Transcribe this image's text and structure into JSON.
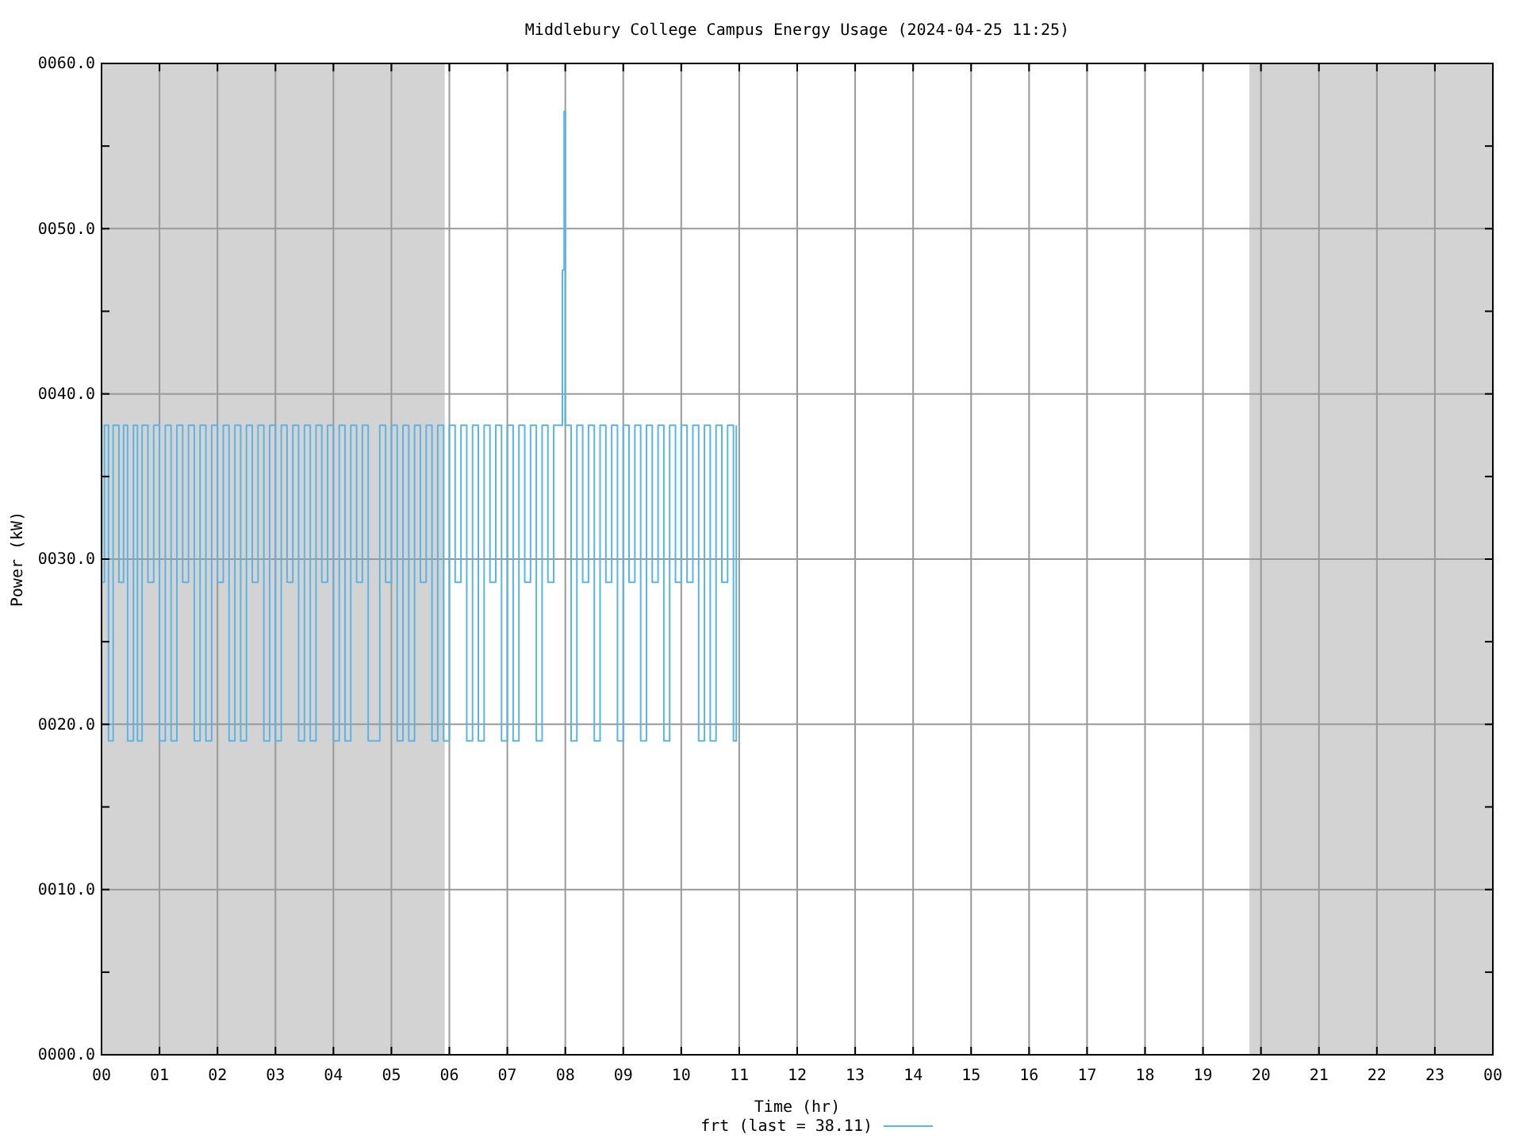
{
  "chart_data": {
    "type": "step",
    "title": "Middlebury College Campus Energy Usage (2024-04-25 11:25)",
    "xlabel": "Time (hr)",
    "ylabel": "Power (kW)",
    "xlim": [
      0,
      24
    ],
    "ylim": [
      0,
      60
    ],
    "xticks": [
      {
        "value": 0,
        "label": "00"
      },
      {
        "value": 1,
        "label": "01"
      },
      {
        "value": 2,
        "label": "02"
      },
      {
        "value": 3,
        "label": "03"
      },
      {
        "value": 4,
        "label": "04"
      },
      {
        "value": 5,
        "label": "05"
      },
      {
        "value": 6,
        "label": "06"
      },
      {
        "value": 7,
        "label": "07"
      },
      {
        "value": 8,
        "label": "08"
      },
      {
        "value": 9,
        "label": "09"
      },
      {
        "value": 10,
        "label": "10"
      },
      {
        "value": 11,
        "label": "11"
      },
      {
        "value": 12,
        "label": "12"
      },
      {
        "value": 13,
        "label": "13"
      },
      {
        "value": 14,
        "label": "14"
      },
      {
        "value": 15,
        "label": "15"
      },
      {
        "value": 16,
        "label": "16"
      },
      {
        "value": 17,
        "label": "17"
      },
      {
        "value": 18,
        "label": "18"
      },
      {
        "value": 19,
        "label": "19"
      },
      {
        "value": 20,
        "label": "20"
      },
      {
        "value": 21,
        "label": "21"
      },
      {
        "value": 22,
        "label": "22"
      },
      {
        "value": 23,
        "label": "23"
      },
      {
        "value": 24,
        "label": "00"
      }
    ],
    "yticks": [
      {
        "value": 0,
        "label": "0000.0"
      },
      {
        "value": 5,
        "label": null
      },
      {
        "value": 10,
        "label": "0010.0"
      },
      {
        "value": 15,
        "label": null
      },
      {
        "value": 20,
        "label": "0020.0"
      },
      {
        "value": 25,
        "label": null
      },
      {
        "value": 30,
        "label": "0030.0"
      },
      {
        "value": 35,
        "label": null
      },
      {
        "value": 40,
        "label": "0040.0"
      },
      {
        "value": 45,
        "label": null
      },
      {
        "value": 50,
        "label": "0050.0"
      },
      {
        "value": 55,
        "label": null
      },
      {
        "value": 60,
        "label": "0060.0"
      }
    ],
    "grid": true,
    "legend": "bottom",
    "bands": [
      {
        "axis": "x",
        "from": 0,
        "to": 5.92,
        "color": "#d3d3d3"
      },
      {
        "axis": "x",
        "from": 19.8,
        "to": 24,
        "color": "#d3d3d3"
      }
    ],
    "x": [
      0,
      0.05,
      0.12,
      0.2,
      0.3,
      0.38,
      0.45,
      0.55,
      0.62,
      0.7,
      0.8,
      0.9,
      1.0,
      1.1,
      1.2,
      1.3,
      1.4,
      1.5,
      1.6,
      1.7,
      1.8,
      1.9,
      2.0,
      2.1,
      2.2,
      2.3,
      2.4,
      2.5,
      2.6,
      2.7,
      2.8,
      2.9,
      3.0,
      3.1,
      3.2,
      3.3,
      3.4,
      3.5,
      3.6,
      3.7,
      3.8,
      3.9,
      4.0,
      4.1,
      4.2,
      4.3,
      4.4,
      4.5,
      4.6,
      4.8,
      4.9,
      5.0,
      5.1,
      5.2,
      5.3,
      5.4,
      5.5,
      5.6,
      5.7,
      5.8,
      5.9,
      6.0,
      6.1,
      6.2,
      6.3,
      6.4,
      6.5,
      6.6,
      6.7,
      6.8,
      6.9,
      7.0,
      7.1,
      7.2,
      7.3,
      7.4,
      7.5,
      7.6,
      7.7,
      7.8,
      7.95,
      7.98,
      8.0,
      8.1,
      8.2,
      8.3,
      8.4,
      8.5,
      8.6,
      8.7,
      8.8,
      8.9,
      9.0,
      9.1,
      9.2,
      9.3,
      9.4,
      9.5,
      9.6,
      9.7,
      9.8,
      9.9,
      10.0,
      10.1,
      10.2,
      10.3,
      10.4,
      10.5,
      10.6,
      10.7,
      10.8,
      10.9,
      10.95
    ],
    "series": [
      {
        "name": "frt (last = 38.11)",
        "color": "#5ab4e6",
        "values": [
          28.6,
          38.1,
          19,
          38.1,
          28.6,
          38.1,
          19,
          38.1,
          19,
          38.1,
          28.6,
          38.1,
          19,
          38.1,
          19,
          38.1,
          28.6,
          38.1,
          19,
          38.1,
          19,
          38.1,
          28.6,
          38.1,
          19,
          38.1,
          19,
          38.1,
          28.6,
          38.1,
          19,
          38.1,
          19,
          38.1,
          28.6,
          38.1,
          19,
          38.1,
          19,
          38.1,
          28.6,
          38.1,
          19,
          38.1,
          19,
          38.1,
          28.6,
          38.1,
          19,
          38.1,
          28.6,
          38.1,
          19,
          38.1,
          19,
          38.1,
          28.6,
          38.1,
          19,
          38.1,
          19,
          38.1,
          28.6,
          38.1,
          19,
          38.1,
          19,
          38.1,
          28.6,
          38.1,
          19,
          38.1,
          19,
          38.1,
          28.6,
          38.1,
          19,
          38.1,
          28.6,
          38.1,
          47.5,
          57.1,
          38.1,
          19,
          38.1,
          28.6,
          38.1,
          19,
          38.1,
          28.6,
          38.1,
          19,
          38.1,
          28.6,
          38.1,
          19,
          38.1,
          28.6,
          38.1,
          19,
          38.1,
          28.6,
          38.1,
          28.6,
          38.1,
          19,
          38.1,
          19,
          38.1,
          28.6,
          38.1,
          19,
          38.1
        ]
      }
    ]
  }
}
